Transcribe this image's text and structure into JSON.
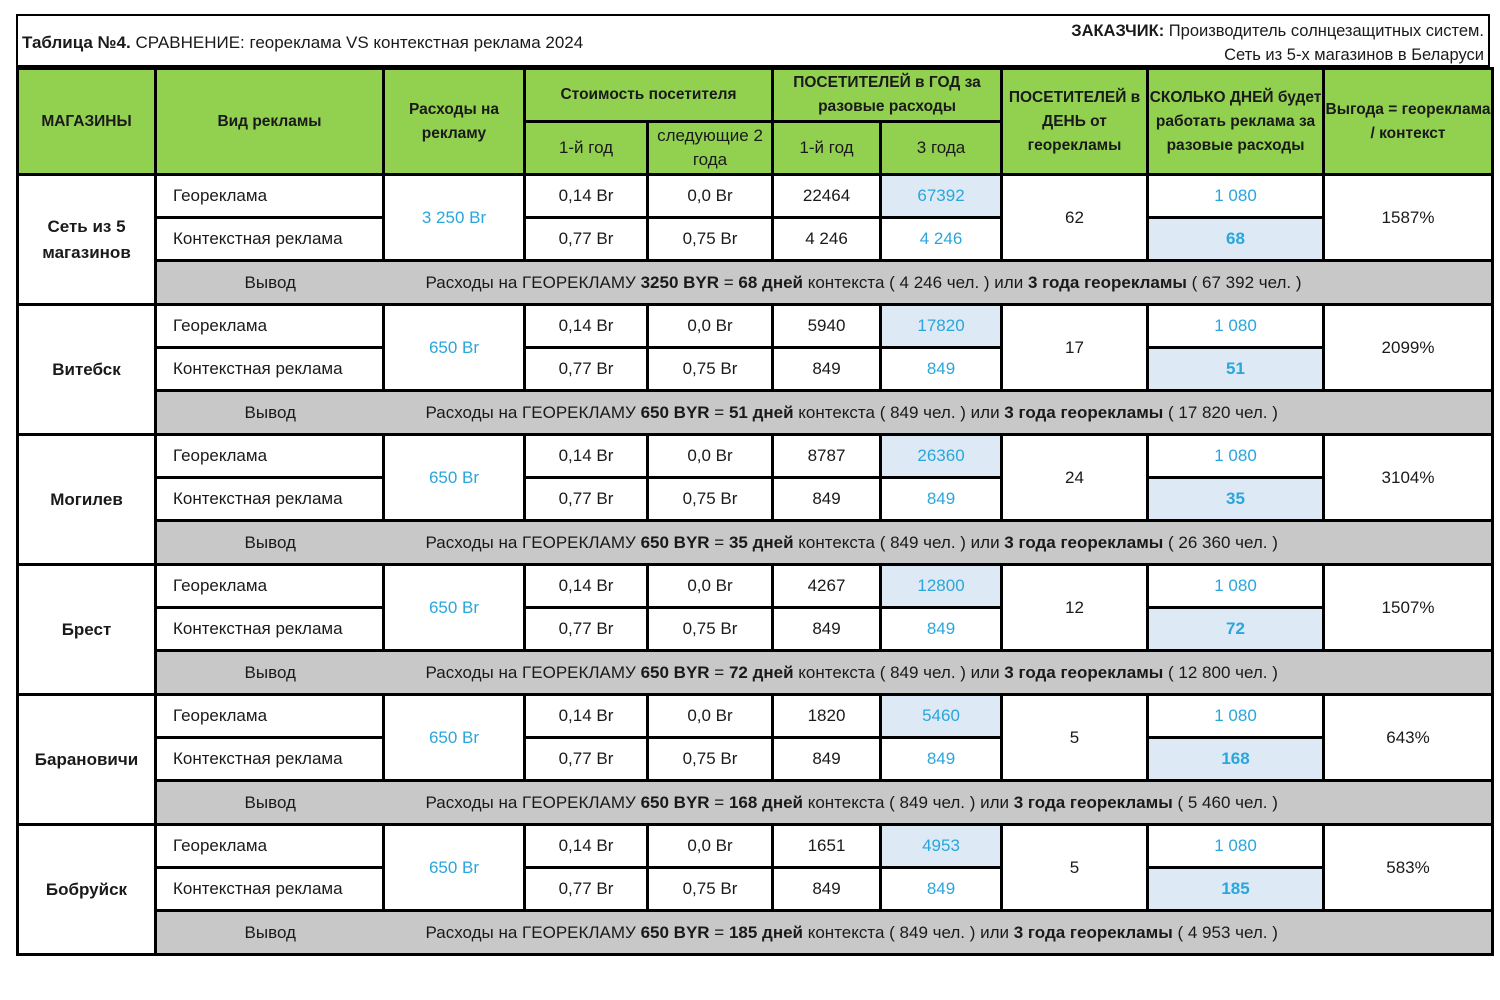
{
  "title": {
    "prefix": "Таблица №4.",
    "text": " СРАВНЕНИЕ:  геореклама VS  контекстная реклама 2024",
    "client_label": "ЗАКАЗЧИК:",
    "client_text": " Производитель солнцезащитных систем.",
    "client_line2": "Сеть из 5-х магазинов в Беларуси"
  },
  "headers": {
    "stores": "МАГАЗИНЫ",
    "ad_type": "Вид рекламы",
    "spend": "Расходы на рекламу",
    "visitor_cost": "Стоимость посетителя",
    "visitor_cost_y1": "1-й год",
    "visitor_cost_next": "следующие 2 года",
    "visitors_year": "ПОСЕТИТЕЛЕЙ в ГОД за разовые расходы",
    "visitors_y1": "1-й год",
    "visitors_3y": "3 года",
    "visitors_day": "ПОСЕТИТЕЛЕЙ в ДЕНЬ от георекламы",
    "days": "СКОЛЬКО ДНЕЙ будет работать реклама за разовые расходы",
    "benefit": "Выгода = геореклама / контекст"
  },
  "labels": {
    "geo": "Геореклама",
    "context": "Контекстная реклама",
    "conclusion": "Вывод"
  },
  "colors": {
    "header_green": "#92d050",
    "highlight_blue_bg": "#dde9f5",
    "value_blue": "#2aa6dc",
    "conclusion_gray": "#c8c8c8"
  },
  "rows": [
    {
      "store": "Сеть из 5 магазинов",
      "spend": "3 250 Br",
      "geo": {
        "cost_y1": "0,14 Br",
        "cost_next": "0,0 Br",
        "vis_y1": "22464",
        "vis_3y": "67392",
        "days": "1 080"
      },
      "ctx": {
        "cost_y1": "0,77 Br",
        "cost_next": "0,75 Br",
        "vis_y1": "4 246",
        "vis_3y": "4 246",
        "days": "68"
      },
      "per_day": "62",
      "benefit": "1587%",
      "conclusion": {
        "a": "Расходы на ГЕОРЕКЛАМУ ",
        "b": "3250 BYR",
        "c": " = ",
        "d": "68 дней",
        "e": " контекста ( 4 246 чел. ) или ",
        "f": "3 года георекламы",
        "g": " ( 67 392 чел. )"
      }
    },
    {
      "store": "Витебск",
      "spend": "650 Br",
      "geo": {
        "cost_y1": "0,14 Br",
        "cost_next": "0,0 Br",
        "vis_y1": "5940",
        "vis_3y": "17820",
        "days": "1 080"
      },
      "ctx": {
        "cost_y1": "0,77 Br",
        "cost_next": "0,75 Br",
        "vis_y1": "849",
        "vis_3y": "849",
        "days": "51"
      },
      "per_day": "17",
      "benefit": "2099%",
      "conclusion": {
        "a": "Расходы на ГЕОРЕКЛАМУ ",
        "b": "650 BYR",
        "c": " = ",
        "d": "51 дней",
        "e": " контекста ( 849 чел. ) или ",
        "f": "3 года георекламы",
        "g": " ( 17 820 чел. )"
      }
    },
    {
      "store": "Могилев",
      "spend": "650 Br",
      "geo": {
        "cost_y1": "0,14 Br",
        "cost_next": "0,0 Br",
        "vis_y1": "8787",
        "vis_3y": "26360",
        "days": "1 080"
      },
      "ctx": {
        "cost_y1": "0,77 Br",
        "cost_next": "0,75 Br",
        "vis_y1": "849",
        "vis_3y": "849",
        "days": "35"
      },
      "per_day": "24",
      "benefit": "3104%",
      "conclusion": {
        "a": "Расходы на ГЕОРЕКЛАМУ ",
        "b": "650 BYR",
        "c": " = ",
        "d": "35 дней",
        "e": " контекста ( 849 чел. ) или ",
        "f": "3 года георекламы",
        "g": " ( 26 360 чел. )"
      }
    },
    {
      "store": "Брест",
      "spend": "650 Br",
      "geo": {
        "cost_y1": "0,14 Br",
        "cost_next": "0,0 Br",
        "vis_y1": "4267",
        "vis_3y": "12800",
        "days": "1 080"
      },
      "ctx": {
        "cost_y1": "0,77 Br",
        "cost_next": "0,75 Br",
        "vis_y1": "849",
        "vis_3y": "849",
        "days": "72"
      },
      "per_day": "12",
      "benefit": "1507%",
      "conclusion": {
        "a": "Расходы на ГЕОРЕКЛАМУ ",
        "b": "650 BYR",
        "c": " = ",
        "d": "72 дней",
        "e": " контекста ( 849 чел. ) или ",
        "f": "3 года георекламы",
        "g": " ( 12 800 чел. )"
      }
    },
    {
      "store": "Барановичи",
      "spend": "650 Br",
      "geo": {
        "cost_y1": "0,14 Br",
        "cost_next": "0,0 Br",
        "vis_y1": "1820",
        "vis_3y": "5460",
        "days": "1 080"
      },
      "ctx": {
        "cost_y1": "0,77 Br",
        "cost_next": "0,75 Br",
        "vis_y1": "849",
        "vis_3y": "849",
        "days": "168"
      },
      "per_day": "5",
      "benefit": "643%",
      "conclusion": {
        "a": "Расходы на ГЕОРЕКЛАМУ ",
        "b": "650 BYR",
        "c": " = ",
        "d": "168 дней",
        "e": " контекста ( 849 чел. ) или ",
        "f": "3 года георекламы",
        "g": " ( 5 460 чел. )"
      }
    },
    {
      "store": "Бобруйск",
      "spend": "650 Br",
      "geo": {
        "cost_y1": "0,14 Br",
        "cost_next": "0,0 Br",
        "vis_y1": "1651",
        "vis_3y": "4953",
        "days": "1 080"
      },
      "ctx": {
        "cost_y1": "0,77 Br",
        "cost_next": "0,75 Br",
        "vis_y1": "849",
        "vis_3y": "849",
        "days": "185"
      },
      "per_day": "5",
      "benefit": "583%",
      "conclusion": {
        "a": "Расходы на ГЕОРЕКЛАМУ ",
        "b": "650 BYR",
        "c": " = ",
        "d": "185 дней",
        "e": " контекста ( 849 чел. ) или ",
        "f": "3 года георекламы",
        "g": " ( 4 953 чел. )"
      }
    }
  ]
}
